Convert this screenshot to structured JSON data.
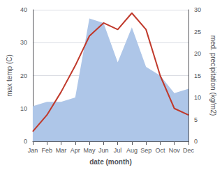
{
  "chart_data": {
    "type": "line",
    "categories": [
      "Jan",
      "Feb",
      "Mar",
      "Apr",
      "May",
      "Jun",
      "Jul",
      "Aug",
      "Sep",
      "Oct",
      "Nov",
      "Dec"
    ],
    "xlabel": "date (month)",
    "ylabel": "max temp (C)",
    "y2label": "med. precipitation (kg/m2)",
    "series": [
      {
        "type": "area",
        "axis": "y2",
        "color": "#aec6e8",
        "values": [
          8,
          9,
          9,
          10,
          28,
          27,
          18,
          26,
          17,
          15,
          11,
          12
        ]
      },
      {
        "type": "line",
        "color": "#c0392b",
        "values": [
          3,
          8,
          15,
          23,
          32,
          36,
          34,
          39,
          34,
          20,
          10,
          8
        ]
      }
    ],
    "ylim": [
      0,
      40
    ],
    "yticks": [
      0,
      10,
      20,
      30,
      40
    ],
    "y2lim": [
      0,
      30
    ],
    "y2ticks": [
      0,
      5,
      10,
      15,
      20,
      25,
      30
    ],
    "grid": true
  }
}
